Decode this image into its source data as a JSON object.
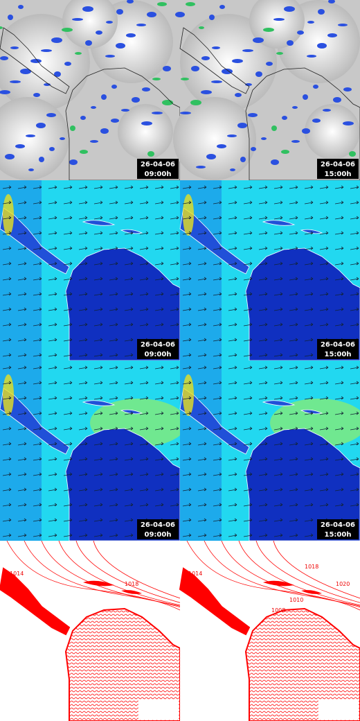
{
  "rows": [
    [
      {
        "date": "26-04-06",
        "time": "09:00h"
      },
      {
        "date": "26-04-06",
        "time": "15:00h"
      }
    ],
    [
      {
        "date": "26-04-06",
        "time": "09:00h"
      },
      {
        "date": "26-04-06",
        "time": "15:00h"
      }
    ],
    [
      {
        "date": "26-04-06",
        "time": "09:00h"
      },
      {
        "date": "26-04-06",
        "time": "15:00h"
      }
    ]
  ],
  "isobars": {
    "left": [
      "1014",
      "1018"
    ],
    "right": [
      "1014",
      "1018",
      "1020",
      "1010",
      "1008"
    ]
  }
}
